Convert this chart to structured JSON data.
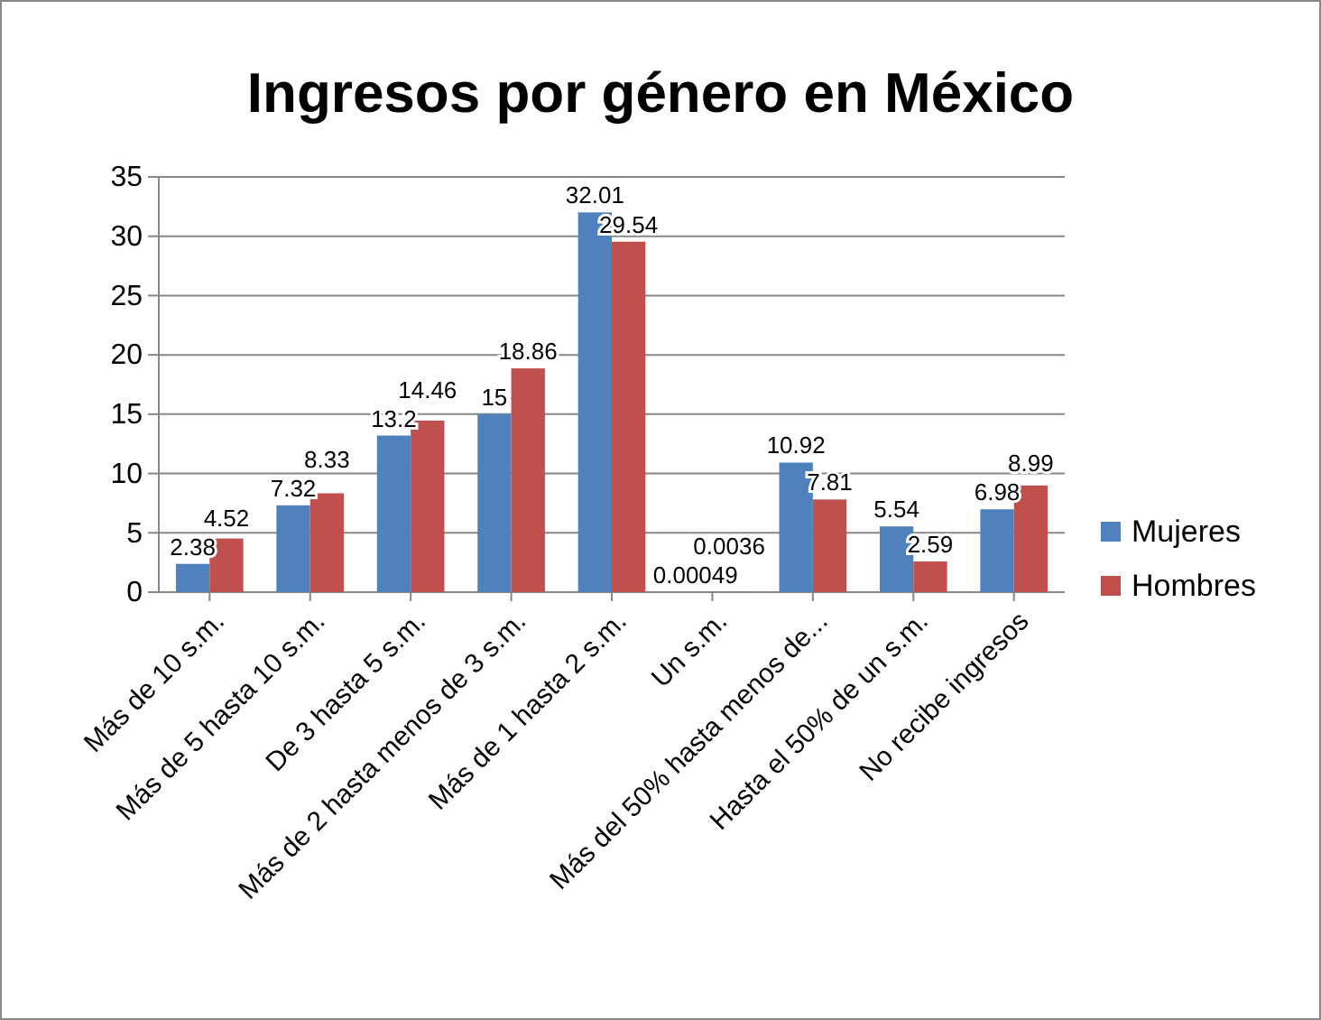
{
  "chart_data": {
    "type": "bar",
    "title": "Ingresos por género en México",
    "categories": [
      "Más de 10 s.m.",
      "Más de 5 hasta 10 s.m.",
      "De 3 hasta 5 s.m.",
      "Más de 2 hasta menos de 3 s.m.",
      "Más de 1 hasta 2 s.m.",
      "Un s.m.",
      "Más del 50% hasta menos de...",
      "Hasta el 50% de un s.m.",
      "No recibe ingresos"
    ],
    "series": [
      {
        "name": "Mujeres",
        "color": "#4f81bd",
        "values": [
          2.38,
          7.32,
          13.2,
          15,
          32.01,
          0.00049,
          10.92,
          5.54,
          6.98
        ]
      },
      {
        "name": "Hombres",
        "color": "#c0504d",
        "values": [
          4.52,
          8.33,
          14.46,
          18.86,
          29.54,
          0.0036,
          7.81,
          2.59,
          8.99
        ]
      }
    ],
    "ylim": [
      0,
      35
    ],
    "yticks": [
      0,
      5,
      10,
      15,
      20,
      25,
      30,
      35
    ],
    "grid": "y",
    "legend": "right",
    "data_labels": true
  }
}
